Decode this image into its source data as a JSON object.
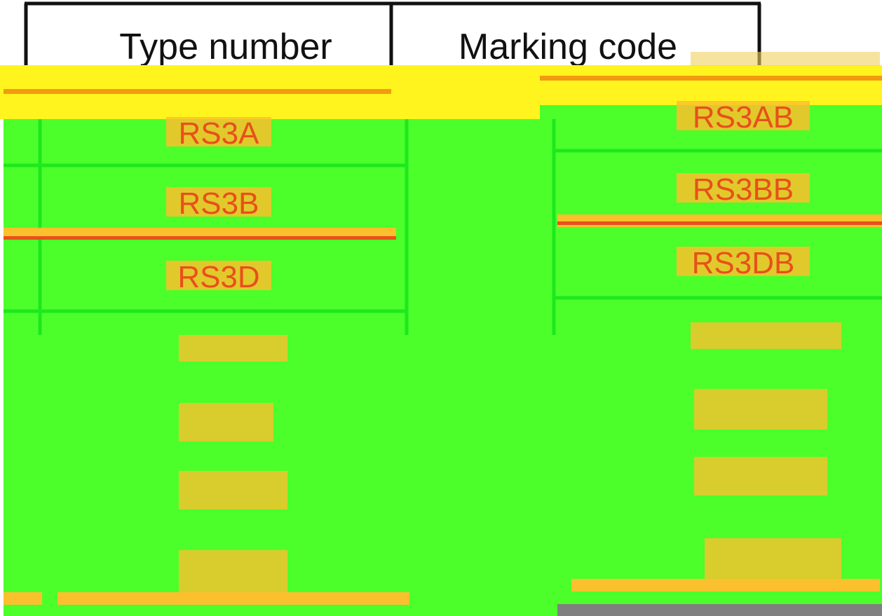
{
  "table": {
    "header": [
      "Type number",
      "Marking code"
    ],
    "rows": [
      [
        "RS3A",
        "RS3AB"
      ],
      [
        "RS3B",
        "RS3BB"
      ],
      [
        "RS3D",
        "RS3DB"
      ]
    ]
  }
}
